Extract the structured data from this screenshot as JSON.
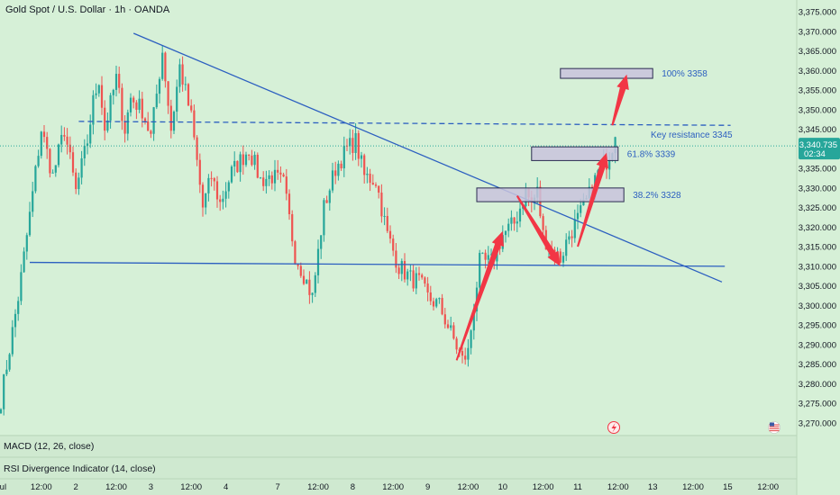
{
  "header": {
    "title": "Gold Spot / U.S. Dollar · 1h · OANDA"
  },
  "panels": {
    "macd_label": "MACD (12, 26, close)",
    "rsi_label": "RSI Divergence Indicator (14, close)"
  },
  "price_badge": {
    "price": "3,340.735",
    "countdown": "02:34",
    "color": "#26a69a"
  },
  "colors": {
    "background": "#d6f0d7",
    "up_candle": "#26a69a",
    "down_candle": "#ef5350",
    "trendline": "#2c5fc0",
    "arrow": "#f23645",
    "zone_fill": "#c9c3dd",
    "zone_border": "#2b2b50"
  },
  "icons": {
    "flash": "flash-icon",
    "flag": "us-flag-icon"
  },
  "chart_data": {
    "type": "candlestick",
    "title": "Gold Spot / U.S. Dollar · 1h · OANDA",
    "ylim": [
      3267,
      3378
    ],
    "y_ticks": [
      "3,375.000",
      "3,370.000",
      "3,365.000",
      "3,360.000",
      "3,355.000",
      "3,350.000",
      "3,345.000",
      "3,340.000",
      "3,335.000",
      "3,330.000",
      "3,325.000",
      "3,320.000",
      "3,315.000",
      "3,310.000",
      "3,305.000",
      "3,300.000",
      "3,295.000",
      "3,290.000",
      "3,285.000",
      "3,280.000",
      "3,275.000",
      "3,270.000"
    ],
    "y_tick_values": [
      3375,
      3370,
      3365,
      3360,
      3355,
      3350,
      3345,
      3340,
      3335,
      3330,
      3325,
      3320,
      3315,
      3310,
      3305,
      3300,
      3295,
      3290,
      3285,
      3280,
      3275,
      3270
    ],
    "x_ticks": [
      "Jul",
      "12:00",
      "2",
      "12:00",
      "3",
      "12:00",
      "4",
      "7",
      "12:00",
      "8",
      "12:00",
      "9",
      "12:00",
      "10",
      "12:00",
      "11",
      "12:00",
      "13",
      "12:00",
      "15",
      "12:00"
    ],
    "x_tick_bars": [
      0,
      14,
      26,
      40,
      52,
      66,
      78,
      96,
      110,
      122,
      136,
      148,
      162,
      174,
      188,
      200,
      214,
      226,
      240,
      252,
      266
    ],
    "ohlc_anchors": [
      [
        0,
        3276
      ],
      [
        6,
        3302
      ],
      [
        10,
        3323
      ],
      [
        14,
        3345
      ],
      [
        18,
        3333
      ],
      [
        22,
        3345
      ],
      [
        26,
        3329
      ],
      [
        30,
        3342
      ],
      [
        32,
        3352
      ],
      [
        34,
        3358
      ],
      [
        36,
        3345
      ],
      [
        40,
        3358
      ],
      [
        43,
        3345
      ],
      [
        45,
        3353
      ],
      [
        49,
        3350
      ],
      [
        52,
        3343
      ],
      [
        56,
        3365
      ],
      [
        59,
        3345
      ],
      [
        62,
        3361
      ],
      [
        66,
        3348
      ],
      [
        70,
        3325
      ],
      [
        73,
        3333
      ],
      [
        76,
        3326
      ],
      [
        80,
        3334
      ],
      [
        86,
        3340
      ],
      [
        90,
        3332
      ],
      [
        94,
        3333
      ],
      [
        98,
        3331
      ],
      [
        102,
        3313
      ],
      [
        105,
        3308
      ],
      [
        108,
        3302
      ],
      [
        112,
        3325
      ],
      [
        116,
        3335
      ],
      [
        120,
        3340
      ],
      [
        123,
        3342
      ],
      [
        126,
        3333
      ],
      [
        130,
        3332
      ],
      [
        134,
        3318
      ],
      [
        138,
        3310
      ],
      [
        142,
        3307
      ],
      [
        145,
        3306
      ],
      [
        148,
        3302
      ],
      [
        152,
        3300
      ],
      [
        156,
        3293
      ],
      [
        160,
        3286
      ],
      [
        162,
        3288
      ],
      [
        164,
        3300
      ],
      [
        166,
        3311
      ],
      [
        170,
        3311
      ],
      [
        174,
        3318
      ],
      [
        178,
        3321
      ],
      [
        182,
        3329
      ],
      [
        184,
        3326
      ],
      [
        186,
        3329
      ],
      [
        188,
        3318
      ],
      [
        191,
        3314
      ],
      [
        194,
        3312
      ],
      [
        197,
        3318
      ],
      [
        200,
        3322
      ],
      [
        204,
        3328
      ],
      [
        207,
        3334
      ],
      [
        210,
        3337
      ],
      [
        213,
        3343
      ]
    ],
    "annotations": [
      "100% 3358",
      "61.8% 3339",
      "38.2% 3328",
      "Key resistance 3345"
    ],
    "key_resistance": 3345,
    "support": 3310,
    "zones": [
      {
        "label": "100% 3358",
        "from_bar": 194,
        "to_bar": 226,
        "low": 3358,
        "high": 3360.5
      },
      {
        "label": "61.8% 3339",
        "from_bar": 184,
        "to_bar": 214,
        "low": 3337,
        "high": 3340.5
      },
      {
        "label": "38.2% 3328",
        "from_bar": 165,
        "to_bar": 216,
        "low": 3326.5,
        "high": 3330
      }
    ],
    "trendline": {
      "from": [
        46,
        3369.5
      ],
      "to": [
        250,
        3306
      ]
    },
    "support_line": {
      "from": [
        10,
        3311
      ],
      "to": [
        251,
        3310
      ]
    },
    "resistance_line": {
      "from": [
        27,
        3347
      ],
      "to": [
        253,
        3346
      ]
    },
    "arrows": [
      {
        "from": [
          158,
          3286
        ],
        "to": [
          174,
          3319
        ]
      },
      {
        "from": [
          179,
          3328
        ],
        "to": [
          194,
          3310
        ]
      },
      {
        "from": [
          200,
          3315
        ],
        "to": [
          210,
          3339
        ]
      },
      {
        "from": [
          212,
          3346
        ],
        "to": [
          217,
          3359
        ]
      }
    ]
  }
}
